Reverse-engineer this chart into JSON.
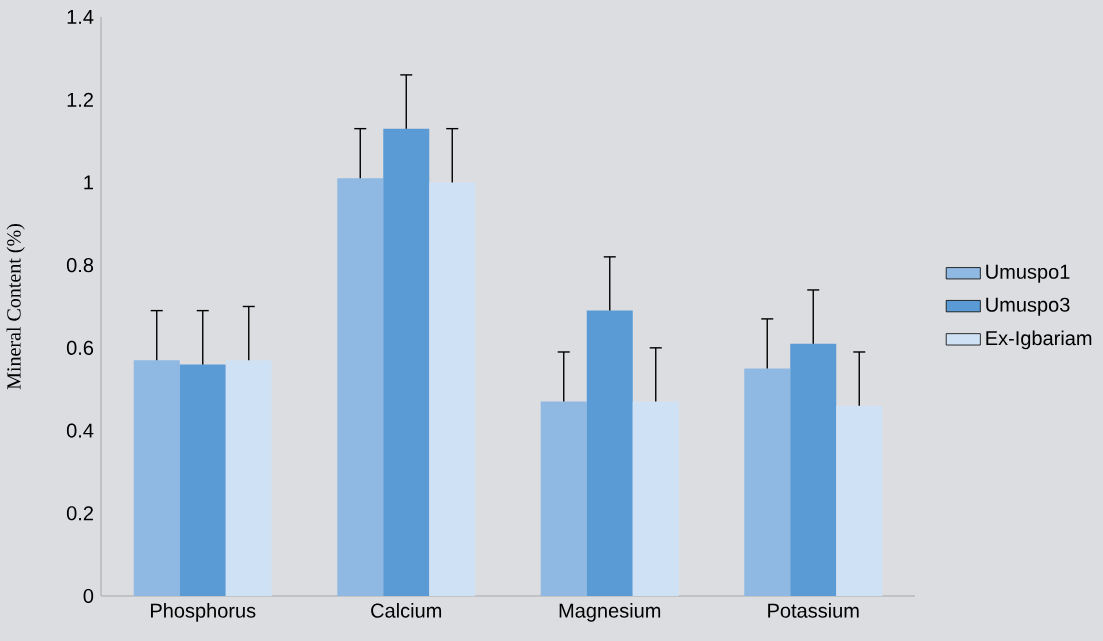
{
  "chart_data": {
    "type": "bar",
    "ylabel": "Mineral Content (%)",
    "categories": [
      "Phosphorus",
      "Calcium",
      "Magnesium",
      "Potassium"
    ],
    "series": [
      {
        "name": "Umuspo1",
        "color": "#8fb9e3",
        "values": [
          0.57,
          1.01,
          0.47,
          0.55
        ],
        "errors": [
          [
            0.57,
            0.69
          ],
          [
            1.01,
            1.13
          ],
          [
            0.47,
            0.59
          ],
          [
            0.55,
            0.67
          ]
        ]
      },
      {
        "name": "Umuspo3",
        "color": "#5b9bd5",
        "values": [
          0.56,
          1.13,
          0.69,
          0.61
        ],
        "errors": [
          [
            0.56,
            0.69
          ],
          [
            1.13,
            1.26
          ],
          [
            0.69,
            0.82
          ],
          [
            0.61,
            0.74
          ]
        ]
      },
      {
        "name": "Ex-Igbariam",
        "color": "#cfe1f4",
        "values": [
          0.57,
          1.0,
          0.47,
          0.46
        ],
        "errors": [
          [
            0.57,
            0.7
          ],
          [
            1.0,
            1.13
          ],
          [
            0.47,
            0.6
          ],
          [
            0.46,
            0.59
          ]
        ]
      }
    ],
    "ylim": [
      0,
      1.4
    ],
    "yticks": [
      0,
      0.2,
      0.4,
      0.6,
      0.8,
      1,
      1.2,
      1.4
    ],
    "legend": "right"
  }
}
